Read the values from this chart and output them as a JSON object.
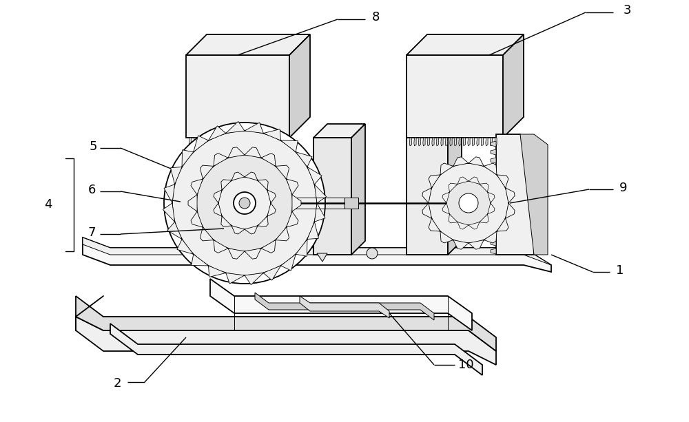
{
  "background_color": "#ffffff",
  "line_color": "#000000",
  "fig_width": 10.0,
  "fig_height": 6.13,
  "lw_main": 1.3,
  "lw_thin": 0.7,
  "lw_ann": 1.0,
  "label_fontsize": 13,
  "face_light": "#f0f0f0",
  "face_mid": "#e0e0e0",
  "face_dark": "#d0d0d0"
}
